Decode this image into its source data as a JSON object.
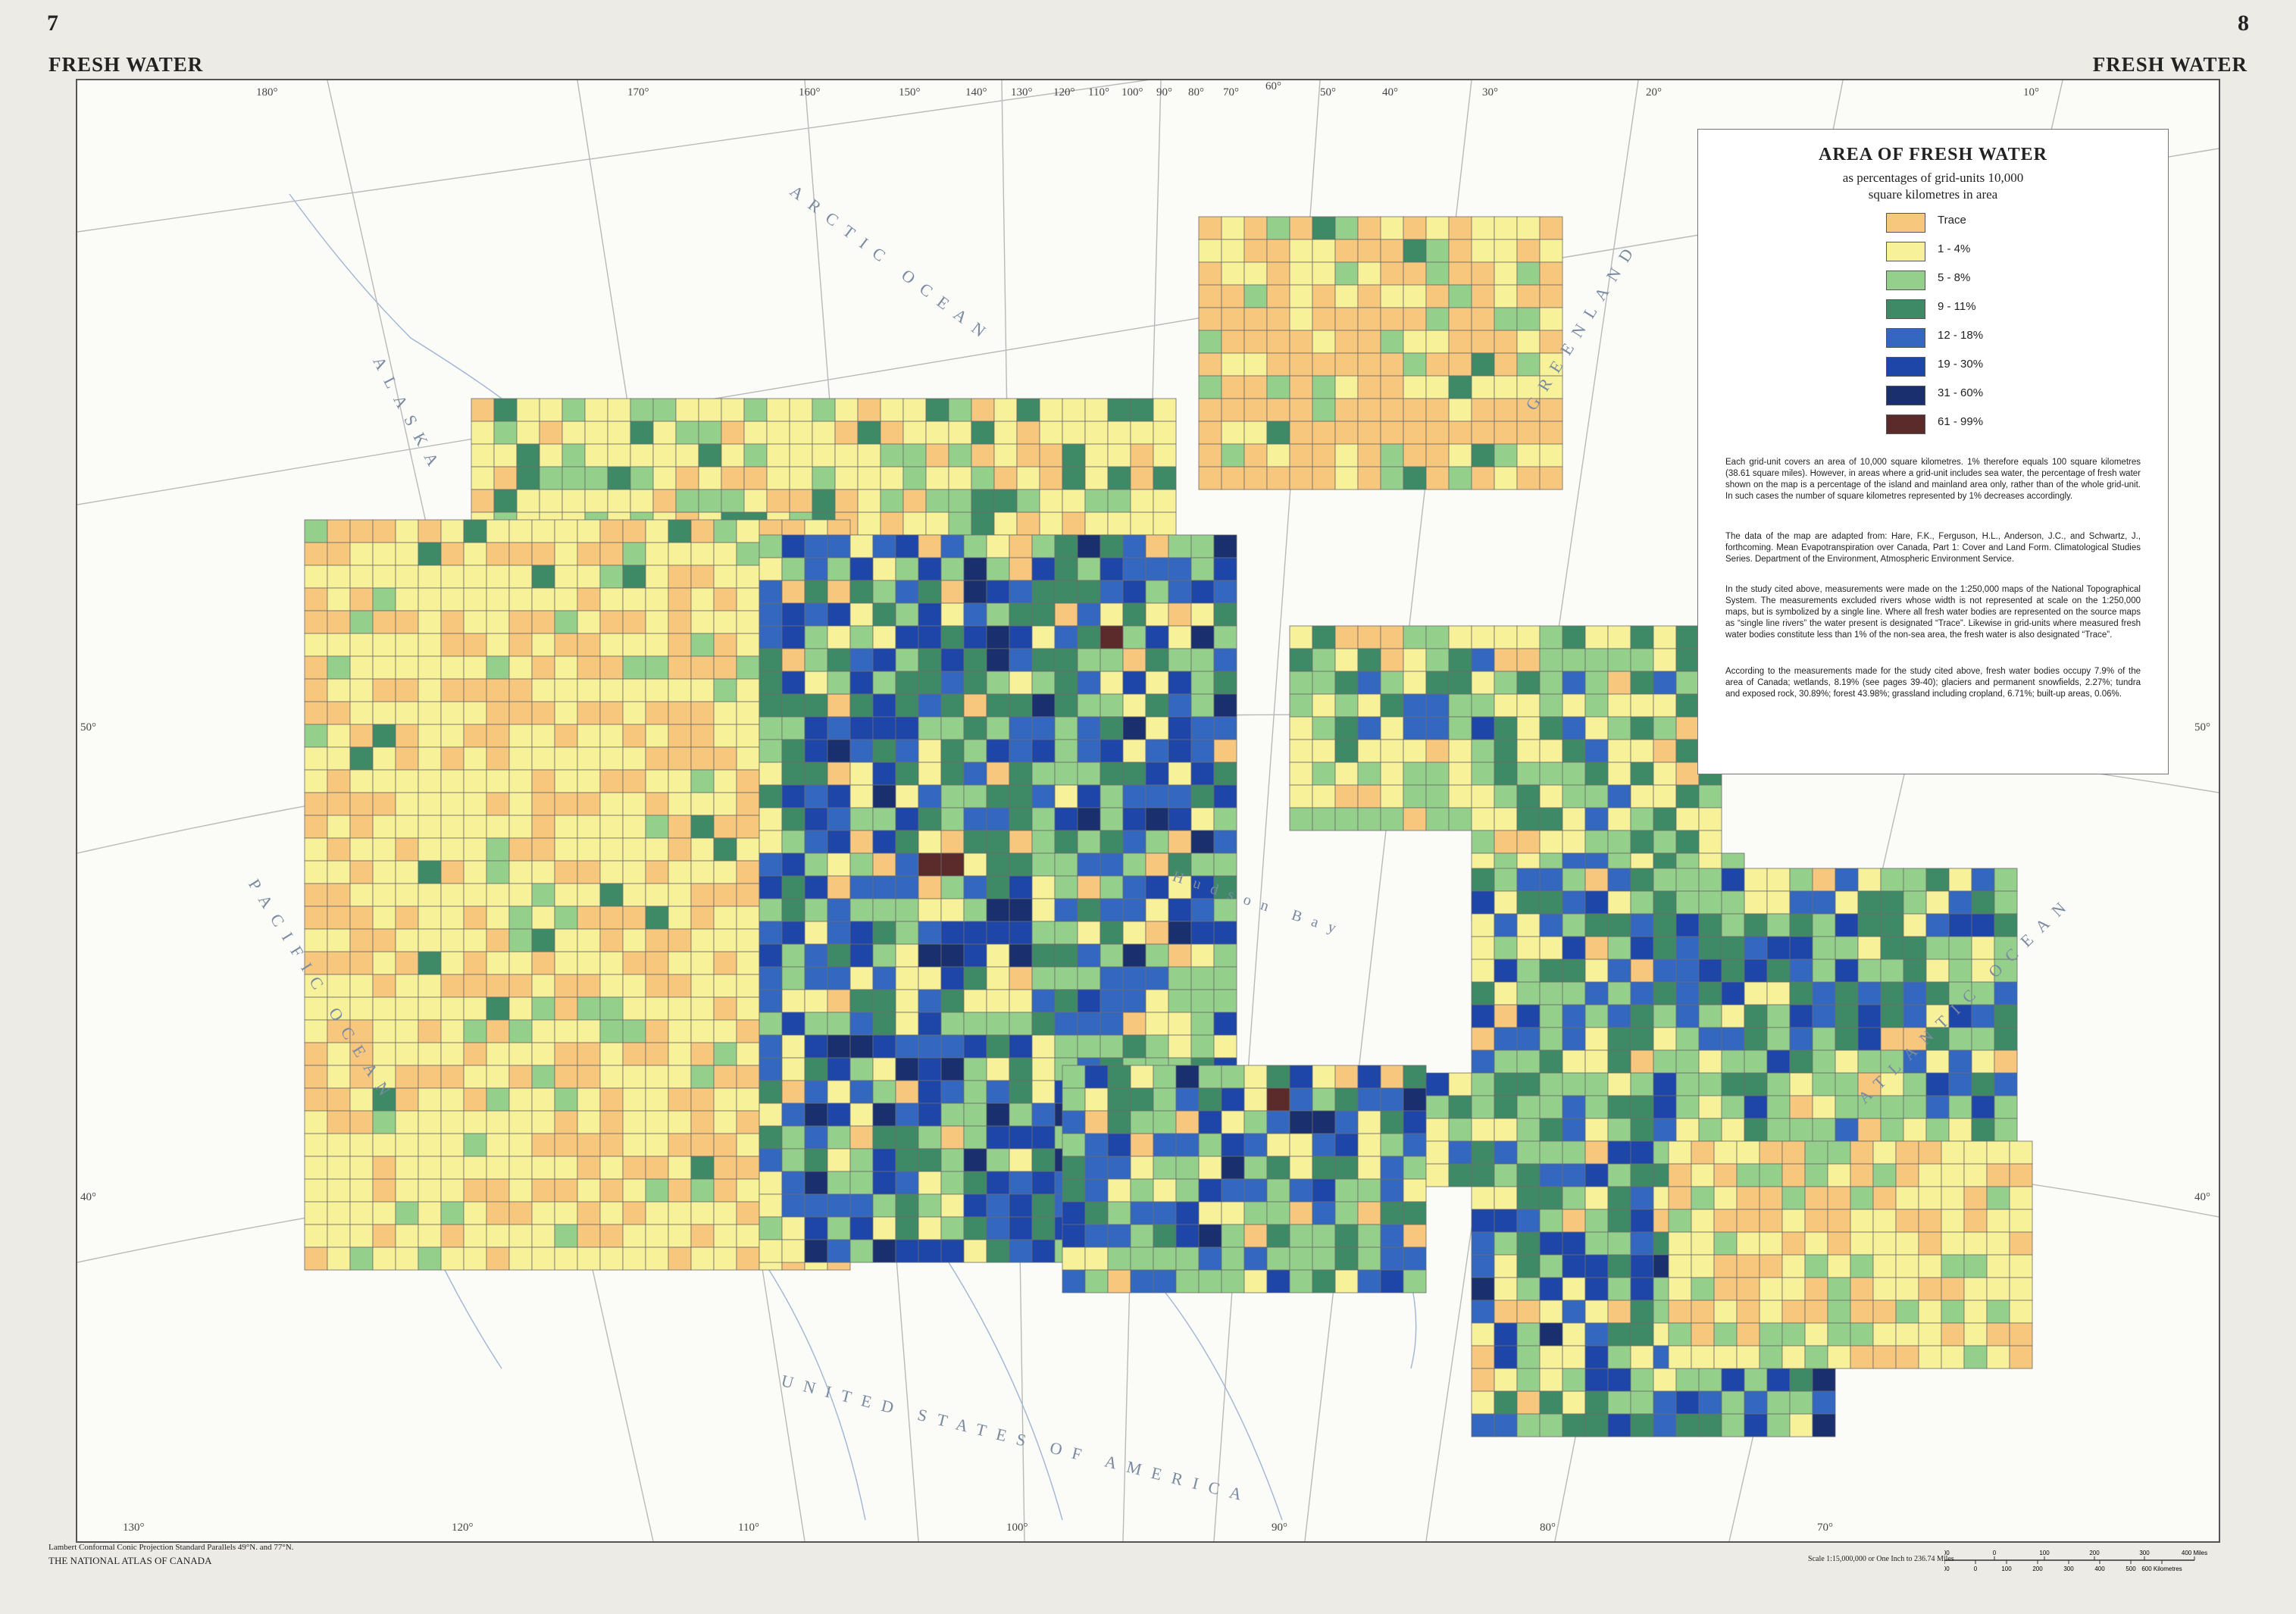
{
  "header": {
    "left_page": "7",
    "right_page": "8",
    "left_title": "FRESH WATER",
    "right_title": "FRESH WATER"
  },
  "legend": {
    "title": "AREA OF FRESH WATER",
    "subtitle_1": "as percentages of grid-units 10,000",
    "subtitle_2": "square kilometres in area",
    "classes": [
      {
        "label": "Trace",
        "color": "#f6c77c"
      },
      {
        "label": "1 - 4%",
        "color": "#f7f29a"
      },
      {
        "label": "5 - 8%",
        "color": "#94d08c"
      },
      {
        "label": "9 - 11%",
        "color": "#3f8a66"
      },
      {
        "label": "12 - 18%",
        "color": "#3468c0"
      },
      {
        "label": "19 - 30%",
        "color": "#1e46a8"
      },
      {
        "label": "31 - 60%",
        "color": "#1a2f6e"
      },
      {
        "label": "61 - 99%",
        "color": "#5b2a2a"
      }
    ],
    "notes": [
      "Each grid-unit covers an area of 10,000 square kilometres. 1% therefore equals 100 square kilometres (38.61 square miles). However, in areas where a grid-unit includes sea water, the percentage of fresh water shown on the map is a percentage of the island and mainland area only, rather than of the whole grid-unit. In such cases the number of square kilometres represented by 1% decreases accordingly.",
      "The data of the map are adapted from: Hare, F.K., Ferguson, H.L., Anderson, J.C., and Schwartz, J., forthcoming. Mean Evapotranspiration over Canada, Part 1: Cover and Land Form. Climatological Studies Series. Department of the Environment, Atmospheric Environment Service.",
      "In the study cited above, measurements were made on the 1:250,000 maps of the National Topographical System. The measurements excluded rivers whose width is not represented at scale on the 1:250,000 maps, but is symbolized by a single line. Where all fresh water bodies are represented on the source maps as “single line rivers” the water present is designated “Trace”. Likewise in grid-units where measured fresh water bodies constitute less than 1% of the non-sea area, the fresh water is also designated “Trace”.",
      "According to the measurements made for the study cited above, fresh water bodies occupy 7.9% of the area of Canada; wetlands, 8.19% (see pages 39-40); glaciers and permanent snowfields, 2.27%; tundra and exposed rock, 30.89%; forest 43.98%; grassland including cropland, 6.71%; built-up areas, 0.06%."
    ]
  },
  "map": {
    "top_longitudes": [
      "180°",
      "170°",
      "160°",
      "150°",
      "140°",
      "130°",
      "120°",
      "110°",
      "100°",
      "90°",
      "80°",
      "70°",
      "60°",
      "50°",
      "40°",
      "30°",
      "20°",
      "10°"
    ],
    "bottom_longitudes": [
      "130°",
      "120°",
      "110°",
      "100°",
      "90°",
      "80°",
      "70°"
    ],
    "latitudes": [
      "50°",
      "40°"
    ],
    "place_names": {
      "arctic_ocean": "ARCTIC OCEAN",
      "alaska": "ALASKA",
      "greenland": "GREENLAND",
      "pacific_ocean": "PACIFIC OCEAN",
      "atlantic_ocean": "ATLANTIC OCEAN",
      "united_states": "UNITED STATES OF AMERICA",
      "hudson_bay": "Hudson Bay"
    }
  },
  "footer": {
    "projection": "Lambert Conformal Conic Projection Standard Parallels 49°N. and 77°N.",
    "atlas": "THE NATIONAL ATLAS OF CANADA",
    "scale": "Scale 1:15,000,000 or One Inch to 236.74 Miles",
    "miles_ticks": [
      "100",
      "0",
      "100",
      "200",
      "300",
      "400 Miles"
    ],
    "km_ticks": [
      "100",
      "0",
      "100",
      "200",
      "300",
      "400",
      "500",
      "600 Kilometres"
    ]
  }
}
